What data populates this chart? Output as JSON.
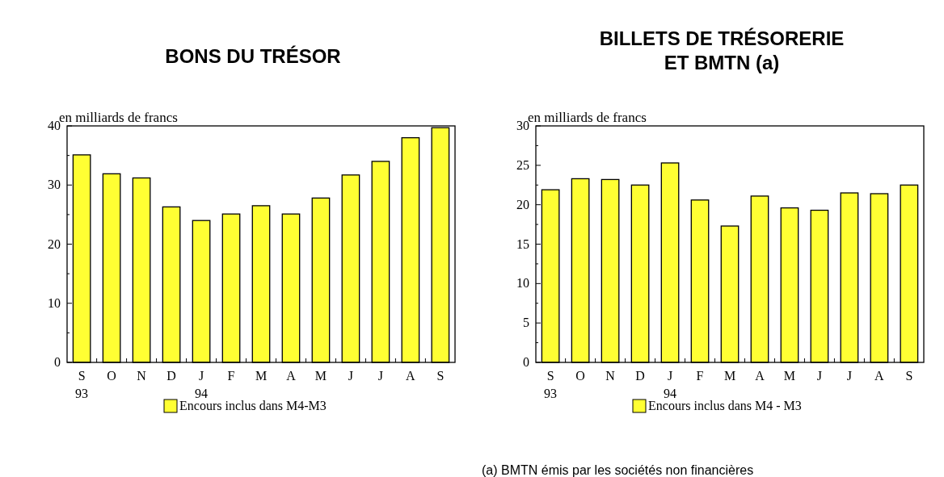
{
  "chart_data": [
    {
      "type": "bar",
      "title": "BONS DU TRÉSOR",
      "ylabel": "en milliards de francs",
      "categories": [
        "S\n93",
        "O",
        "N",
        "D",
        "J\n94",
        "F",
        "M",
        "A",
        "M",
        "J",
        "J",
        "A",
        "S"
      ],
      "series": [
        {
          "name": "Encours inclus dans M4-M3",
          "color": "#ffff33",
          "values": [
            35.1,
            31.9,
            31.2,
            26.3,
            24.0,
            25.1,
            26.5,
            25.1,
            27.8,
            31.7,
            34.0,
            38.0,
            39.7
          ]
        }
      ],
      "ylim": [
        0,
        40
      ],
      "yticks": [
        0,
        {
          "value": 5,
          "label": null
        },
        10,
        {
          "value": 15,
          "label": null
        },
        20,
        {
          "value": 25,
          "label": null
        },
        30,
        {
          "value": 35,
          "label": null
        },
        40
      ],
      "legend": "bottom",
      "grid": false
    },
    {
      "type": "bar",
      "title": "BILLETS DE TRÉSORERIE\nET BMTN (a)",
      "ylabel": "en milliards de francs",
      "categories": [
        "S\n93",
        "O",
        "N",
        "D",
        "J\n94",
        "F",
        "M",
        "A",
        "M",
        "J",
        "J",
        "A",
        "S"
      ],
      "series": [
        {
          "name": "Encours inclus dans M4 - M3",
          "color": "#ffff33",
          "values": [
            21.9,
            23.3,
            23.2,
            22.5,
            25.3,
            20.6,
            17.3,
            21.1,
            19.6,
            19.3,
            21.5,
            21.4,
            22.5
          ]
        }
      ],
      "ylim": [
        0,
        30
      ],
      "yticks": [
        0,
        {
          "value": 2.5,
          "label": null
        },
        5,
        {
          "value": 7.5,
          "label": null
        },
        10,
        {
          "value": 12.5,
          "label": null
        },
        15,
        {
          "value": 17.5,
          "label": null
        },
        20,
        {
          "value": 22.5,
          "label": null
        },
        25,
        {
          "value": 27.5,
          "label": null
        },
        30
      ],
      "legend": "bottom",
      "grid": false,
      "annotations": [
        "(a) BMTN émis par les sociétés non financières"
      ]
    }
  ]
}
